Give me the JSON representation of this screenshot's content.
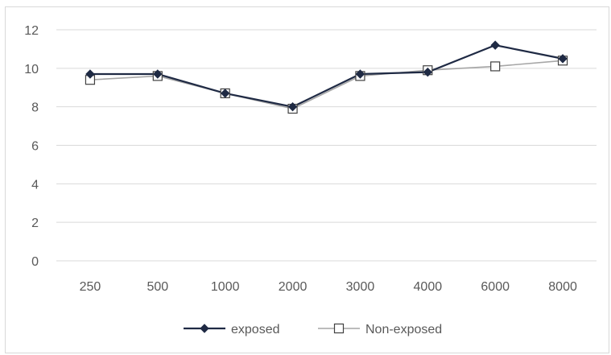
{
  "chart_data": {
    "type": "line",
    "categories": [
      "250",
      "500",
      "1000",
      "2000",
      "3000",
      "4000",
      "6000",
      "8000"
    ],
    "series": [
      {
        "name": "exposed",
        "values": [
          9.7,
          9.7,
          8.7,
          8.0,
          9.7,
          9.8,
          11.2,
          10.5
        ],
        "color": "#1f2a44",
        "marker": "diamond"
      },
      {
        "name": "Non-exposed",
        "values": [
          9.4,
          9.6,
          8.7,
          7.9,
          9.6,
          9.9,
          10.1,
          10.4
        ],
        "color": "#a6a6a6",
        "marker": "square"
      }
    ],
    "y_ticks": [
      "0",
      "2",
      "4",
      "6",
      "8",
      "10",
      "12"
    ],
    "ylim": [
      0,
      12
    ],
    "grid": true,
    "legend_position": "bottom"
  }
}
